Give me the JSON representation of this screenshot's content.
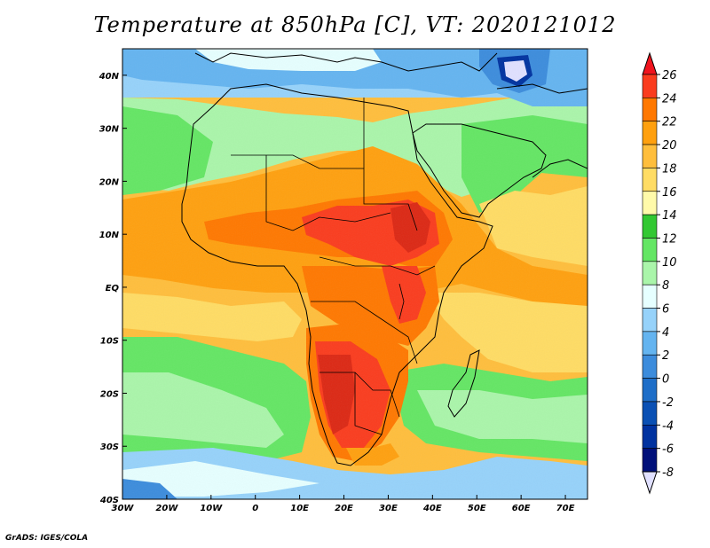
{
  "title": "Temperature at 850hPa [C], VT: 2020121012",
  "footer": "GrADS: IGES/COLA",
  "map": {
    "projection": "latlon",
    "lon_range": [
      -30,
      75
    ],
    "lat_range": [
      -40,
      45
    ],
    "lon_ticks": [
      {
        "value": -30,
        "label": "30W"
      },
      {
        "value": -20,
        "label": "20W"
      },
      {
        "value": -10,
        "label": "10W"
      },
      {
        "value": 0,
        "label": "0"
      },
      {
        "value": 10,
        "label": "10E"
      },
      {
        "value": 20,
        "label": "20E"
      },
      {
        "value": 30,
        "label": "30E"
      },
      {
        "value": 40,
        "label": "40E"
      },
      {
        "value": 50,
        "label": "50E"
      },
      {
        "value": 60,
        "label": "60E"
      },
      {
        "value": 70,
        "label": "70E"
      }
    ],
    "lat_ticks": [
      {
        "value": 40,
        "label": "40N"
      },
      {
        "value": 30,
        "label": "30N"
      },
      {
        "value": 20,
        "label": "20N"
      },
      {
        "value": 10,
        "label": "10N"
      },
      {
        "value": 0,
        "label": "EQ"
      },
      {
        "value": -10,
        "label": "10S"
      },
      {
        "value": -20,
        "label": "20S"
      },
      {
        "value": -30,
        "label": "30S"
      },
      {
        "value": -40,
        "label": "40S"
      }
    ]
  },
  "colorbar": {
    "levels": [
      "26",
      "24",
      "22",
      "20",
      "18",
      "16",
      "14",
      "12",
      "10",
      "8",
      "6",
      "4",
      "2",
      "0",
      "-2",
      "-4",
      "-6",
      "-8"
    ],
    "colors_top_to_bottom": [
      "#f0141e",
      "#fa3c1e",
      "#ff7800",
      "#ffa00f",
      "#ffbe3c",
      "#ffdc64",
      "#fffaaa",
      "#32c832",
      "#64e664",
      "#aaf5aa",
      "#e6ffff",
      "#96d2fa",
      "#64b4f0",
      "#3c8cdc",
      "#1e6ec8",
      "#0a50b4",
      "#0032a0",
      "#00107a",
      "#e0e0ff"
    ]
  },
  "regions": [
    {
      "name": "hot-southern-africa",
      "color": "#dc2814"
    },
    {
      "name": "hot-sudan-ethiopia",
      "color": "#e63c1e"
    },
    {
      "name": "cold-caspian-core",
      "color": "#e0e0ff"
    }
  ]
}
